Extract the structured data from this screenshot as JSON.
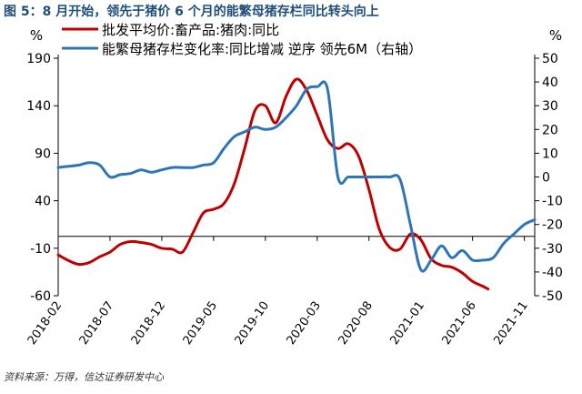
{
  "figure": {
    "title": "图 5：8 月开始，领先于猪价 6 个月的能繁母猪存栏同比转头向上",
    "source": "资料来源：万得，信达证券研发中心"
  },
  "colors": {
    "title": "#1f4e79",
    "price_series": "#c00000",
    "sow_series": "#2e75b6",
    "axis": "#000000"
  },
  "chart_data": {
    "type": "line",
    "left_axis": {
      "unit": "%",
      "ticks": [
        190,
        140,
        90,
        40,
        -10,
        -60
      ],
      "ylim": [
        -60,
        190
      ]
    },
    "right_axis": {
      "unit": "%",
      "ticks": [
        50,
        40,
        30,
        20,
        10,
        0,
        -10,
        -20,
        -30,
        -40,
        -50
      ],
      "ylim": [
        -50,
        50
      ]
    },
    "x_ticks": [
      "2018-02",
      "2018-07",
      "2018-12",
      "2019-05",
      "2019-10",
      "2020-03",
      "2020-08",
      "2021-01",
      "2021-06",
      "2021-11"
    ],
    "x_range": [
      "2018-02",
      "2021-12"
    ],
    "series": [
      {
        "name": "批发平均价:畜产品:猪肉:同比",
        "axis": "left",
        "color": "#c00000",
        "points": [
          [
            "2018-02",
            -17
          ],
          [
            "2018-03",
            -23
          ],
          [
            "2018-04",
            -27
          ],
          [
            "2018-05",
            -25
          ],
          [
            "2018-06",
            -19
          ],
          [
            "2018-07",
            -14
          ],
          [
            "2018-08",
            -6
          ],
          [
            "2018-09",
            -3
          ],
          [
            "2018-10",
            -4
          ],
          [
            "2018-11",
            -6
          ],
          [
            "2018-12",
            -10
          ],
          [
            "2018-13",
            -11
          ],
          [
            "2019-02",
            -14
          ],
          [
            "2019-03",
            6
          ],
          [
            "2019-04",
            27
          ],
          [
            "2019-05",
            31
          ],
          [
            "2019-06",
            37
          ],
          [
            "2019-07",
            58
          ],
          [
            "2019-08",
            95
          ],
          [
            "2019-09",
            135
          ],
          [
            "2019-10",
            140
          ],
          [
            "2019-11",
            122
          ],
          [
            "2019-12",
            150
          ],
          [
            "2020-01",
            168
          ],
          [
            "2020-02",
            156
          ],
          [
            "2020-03",
            130
          ],
          [
            "2020-04",
            104
          ],
          [
            "2020-05",
            95
          ],
          [
            "2020-06",
            100
          ],
          [
            "2020-07",
            87
          ],
          [
            "2020-08",
            52
          ],
          [
            "2020-09",
            10
          ],
          [
            "2020-10",
            -9
          ],
          [
            "2020-11",
            -11
          ],
          [
            "2020-12",
            5
          ],
          [
            "2021-01",
            -1
          ],
          [
            "2021-02",
            -21
          ],
          [
            "2021-03",
            -28
          ],
          [
            "2021-04",
            -30
          ],
          [
            "2021-05",
            -36
          ],
          [
            "2021-06",
            -45
          ],
          [
            "2021-07",
            -50
          ],
          [
            "2021-07.5",
            -53
          ]
        ]
      },
      {
        "name": "能繁母猪存栏变化率:同比增减 逆序 领先6M（右轴）",
        "axis": "right",
        "color": "#2e75b6",
        "points": [
          [
            "2018-02",
            4
          ],
          [
            "2018-03",
            4.5
          ],
          [
            "2018-04",
            5
          ],
          [
            "2018-05",
            6
          ],
          [
            "2018-06",
            5
          ],
          [
            "2018-07",
            0
          ],
          [
            "2018-08",
            1
          ],
          [
            "2018-09",
            1.5
          ],
          [
            "2018-10",
            3
          ],
          [
            "2018-11",
            2
          ],
          [
            "2018-12",
            3
          ],
          [
            "2019-01",
            4
          ],
          [
            "2019-02",
            4
          ],
          [
            "2019-03",
            4
          ],
          [
            "2019-04",
            5
          ],
          [
            "2019-05",
            6
          ],
          [
            "2019-06",
            12
          ],
          [
            "2019-07",
            17
          ],
          [
            "2019-08",
            19
          ],
          [
            "2019-09",
            21
          ],
          [
            "2019-10",
            20
          ],
          [
            "2019-11",
            21
          ],
          [
            "2019-12",
            25
          ],
          [
            "2020-01",
            30
          ],
          [
            "2020-02",
            37
          ],
          [
            "2020-03",
            38
          ],
          [
            "2020-04",
            37
          ],
          [
            "2020-05",
            0
          ],
          [
            "2020-06",
            0
          ],
          [
            "2020-07",
            0
          ],
          [
            "2020-08",
            0
          ],
          [
            "2020-09",
            0
          ],
          [
            "2020-10",
            0
          ],
          [
            "2020-11",
            -1
          ],
          [
            "2020-12",
            -20
          ],
          [
            "2021-01",
            -39
          ],
          [
            "2021-02",
            -35
          ],
          [
            "2021-03",
            -29
          ],
          [
            "2021-04",
            -34
          ],
          [
            "2021-05",
            -31
          ],
          [
            "2021-06",
            -35
          ],
          [
            "2021-07",
            -35
          ],
          [
            "2021-08",
            -34
          ],
          [
            "2021-09",
            -28
          ],
          [
            "2021-10",
            -24
          ],
          [
            "2021-11",
            -20
          ],
          [
            "2021-12",
            -18
          ]
        ]
      }
    ],
    "grid": false,
    "legend": "top"
  }
}
